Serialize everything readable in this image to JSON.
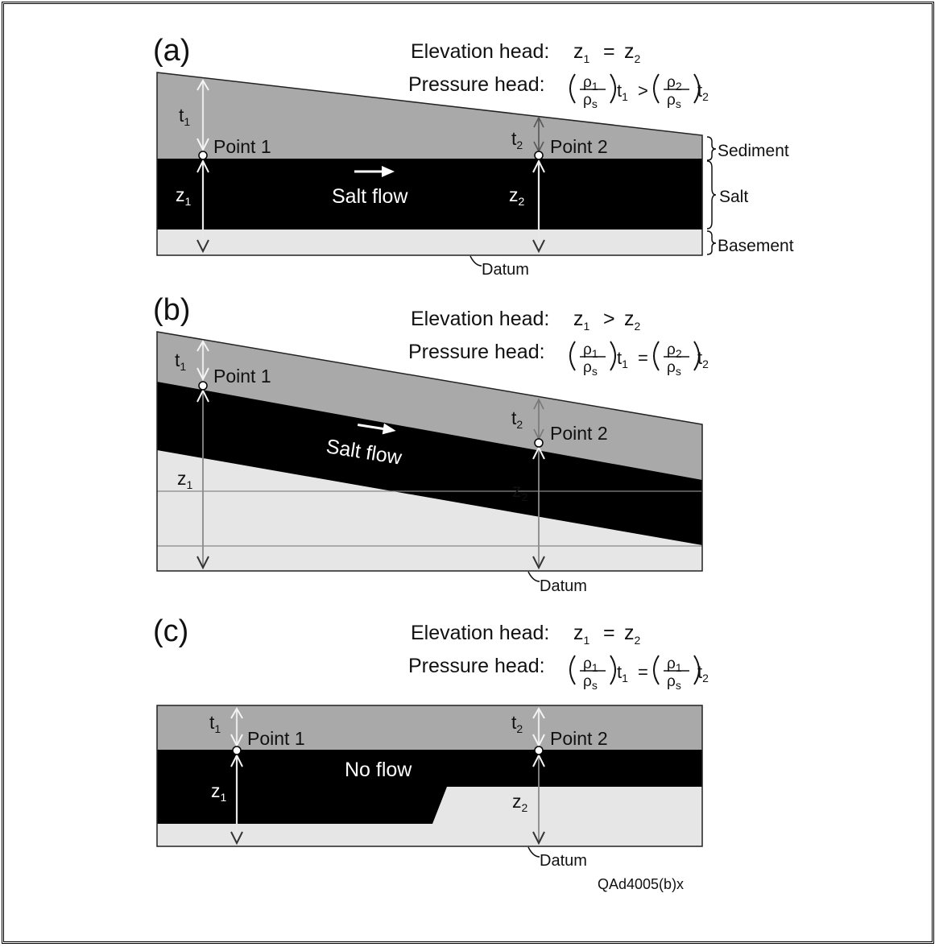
{
  "panels": [
    {
      "tag": "(a)",
      "elevation_head_label": "Elevation head:",
      "elevation_relation": "=",
      "pressure_head_label": "Pressure head:",
      "pressure_relation": ">",
      "rho_left": "1",
      "rho_right": "2",
      "point1": "Point 1",
      "point2": "Point 2",
      "flow_label": "Salt flow",
      "datum": "Datum",
      "layers": {
        "sediment": "Sediment",
        "salt": "Salt",
        "basement": "Basement"
      }
    },
    {
      "tag": "(b)",
      "elevation_head_label": "Elevation head:",
      "elevation_relation": ">",
      "pressure_head_label": "Pressure head:",
      "pressure_relation": "=",
      "rho_left": "1",
      "rho_right": "2",
      "point1": "Point 1",
      "point2": "Point 2",
      "flow_label": "Salt flow",
      "datum": "Datum"
    },
    {
      "tag": "(c)",
      "elevation_head_label": "Elevation head:",
      "elevation_relation": "=",
      "pressure_head_label": "Pressure head:",
      "pressure_relation": "=",
      "rho_left": "1",
      "rho_right": "1",
      "point1": "Point 1",
      "point2": "Point 2",
      "flow_label": "No flow",
      "datum": "Datum"
    }
  ],
  "symbols": {
    "z": "z",
    "t": "t",
    "rho": "ρ",
    "s": "s",
    "one": "1",
    "two": "2"
  },
  "figure_code": "QAd4005(b)x",
  "colors": {
    "sediment": "#a9a9a9",
    "salt": "#000000",
    "basement": "#e6e6e6"
  }
}
